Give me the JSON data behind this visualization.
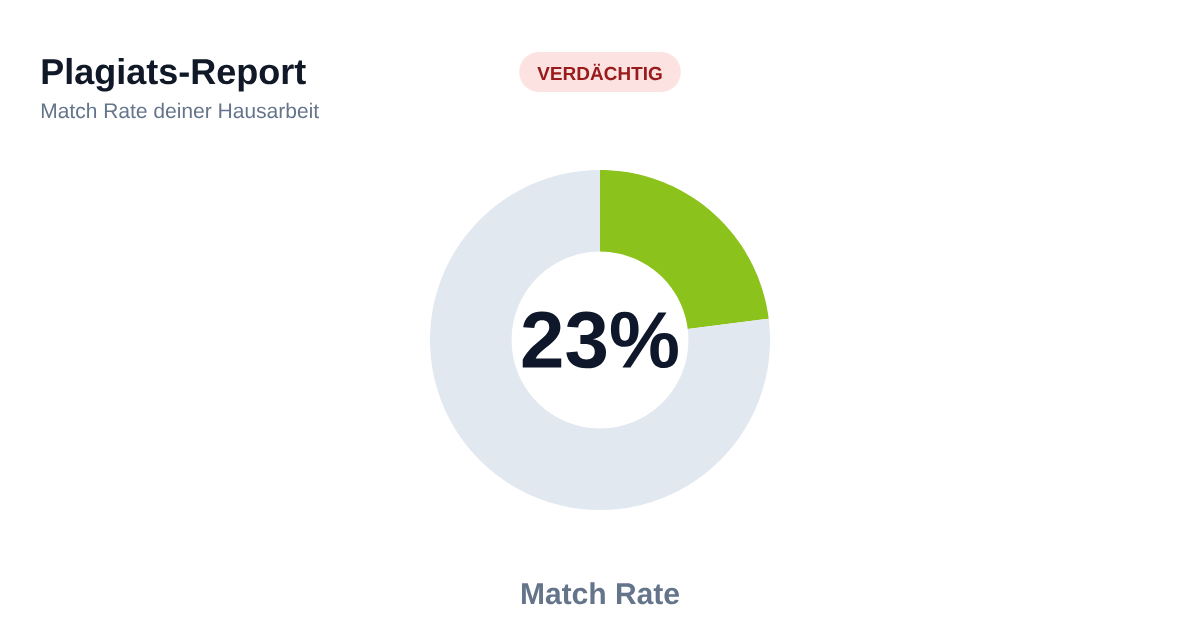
{
  "chart_data": {
    "type": "donut",
    "title": "Plagiats-Report",
    "subtitle": "Match Rate deiner Hausarbeit",
    "categories": [
      null,
      null
    ],
    "values": [
      23,
      77
    ],
    "colors": [
      "#8cc21c",
      "#e2e8f0"
    ],
    "value_labels": [
      "23%",
      null
    ],
    "annotations": [
      "VERDÄCHTIG",
      "Match Rate"
    ]
  }
}
